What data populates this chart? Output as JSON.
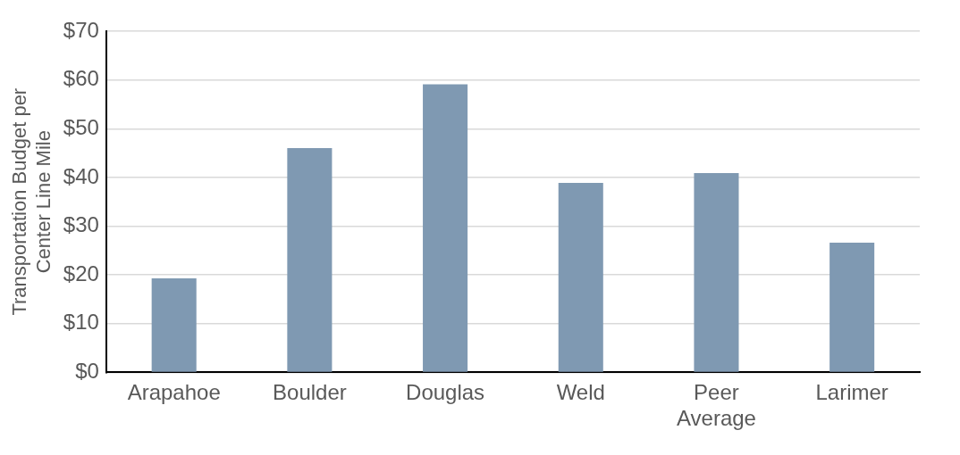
{
  "chart_data": {
    "type": "bar",
    "ylabel": "Transportation Budget per Center Line Mile",
    "categories": [
      "Arapahoe",
      "Boulder",
      "Douglas",
      "Weld",
      "Peer Average",
      "Larimer"
    ],
    "values": [
      19.3,
      46.0,
      59.1,
      38.9,
      40.9,
      26.6
    ],
    "color": "#7f99b2",
    "ylim": [
      0,
      70
    ],
    "yticks": [
      {
        "value": 0,
        "label": "$0"
      },
      {
        "value": 10,
        "label": "$10"
      },
      {
        "value": 20,
        "label": "$20"
      },
      {
        "value": 30,
        "label": "$30"
      },
      {
        "value": 40,
        "label": "$40"
      },
      {
        "value": 50,
        "label": "$50"
      },
      {
        "value": 60,
        "label": "$60"
      },
      {
        "value": 70,
        "label": "$70"
      }
    ],
    "grid": "y",
    "legend": false
  }
}
